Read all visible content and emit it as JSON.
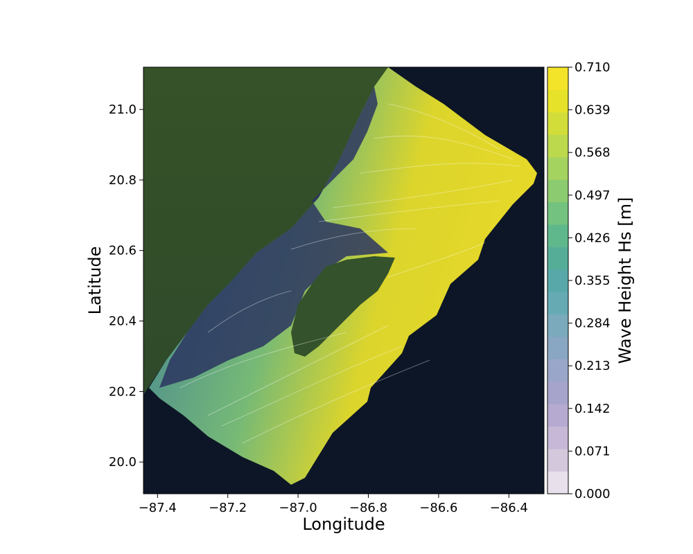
{
  "chart_data": {
    "type": "heatmap",
    "xlabel": "Longitude",
    "ylabel": "Latitude",
    "xlim": [
      -87.44,
      -86.3
    ],
    "ylim": [
      19.91,
      21.12
    ],
    "x_ticks": [
      "−87.4",
      "−87.2",
      "−87.0",
      "−86.8",
      "−86.6",
      "−86.4"
    ],
    "x_tick_values": [
      -87.4,
      -87.2,
      -87.0,
      -86.8,
      -86.6,
      -86.4
    ],
    "y_ticks": [
      "20.0",
      "20.2",
      "20.4",
      "20.6",
      "20.8",
      "21.0"
    ],
    "y_tick_values": [
      20.0,
      20.2,
      20.4,
      20.6,
      20.8,
      21.0
    ],
    "colorbar": {
      "label": "Wave Height Hs [m]",
      "min": 0.0,
      "max": 0.71,
      "ticks": [
        "0.710",
        "0.639",
        "0.568",
        "0.497",
        "0.426",
        "0.355",
        "0.284",
        "0.213",
        "0.142",
        "0.071",
        "0.000"
      ],
      "tick_values": [
        0.71,
        0.639,
        0.568,
        0.497,
        0.426,
        0.355,
        0.284,
        0.213,
        0.142,
        0.071,
        0.0
      ],
      "colors": [
        "#e8e0ea",
        "#d4c8dc",
        "#c6b8d6",
        "#b6aad0",
        "#a7a4cc",
        "#9aa6c9",
        "#89a6c2",
        "#7aaabb",
        "#66aab4",
        "#58a8a9",
        "#55ad98",
        "#5fb88c",
        "#73c27f",
        "#8ccb6f",
        "#a5d360",
        "#bcd94e",
        "#d2dd3a",
        "#e6e22a",
        "#f3e329"
      ]
    },
    "background": {
      "land": "#3a5530",
      "ocean": "#0e1626"
    },
    "grid": false,
    "legend": "none"
  }
}
